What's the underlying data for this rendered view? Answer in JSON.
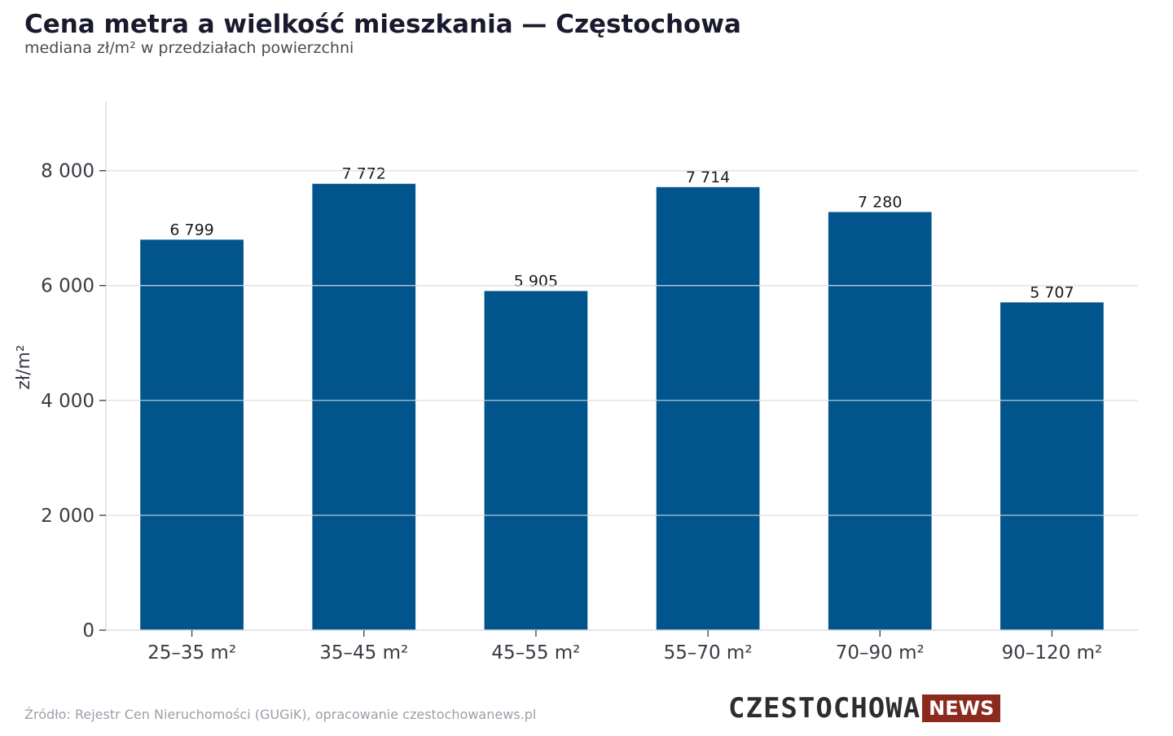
{
  "header": {
    "title": "Cena metra a wielkość mieszkania — Częstochowa",
    "subtitle": "mediana zł/m² w przedziałach powierzchni"
  },
  "footer": {
    "source": "Źródło: Rejestr Cen Nieruchomości (GUGiK), opracowanie czestochowanews.pl",
    "logo_main": "CZESTOCHOWA",
    "logo_tag": "NEWS"
  },
  "colors": {
    "bar": "#02558c",
    "grid": "#e3e3e3",
    "axis_text": "#3a3a44",
    "label_text": "#1a1a1a"
  },
  "chart_data": {
    "type": "bar",
    "title": "Cena metra a wielkość mieszkania — Częstochowa",
    "subtitle": "mediana zł/m² w przedziałach powierzchni",
    "xlabel": "",
    "ylabel": "zł/m²",
    "categories": [
      "25–35 m²",
      "35–45 m²",
      "45–55 m²",
      "55–70 m²",
      "70–90 m²",
      "90–120 m²"
    ],
    "values": [
      6799,
      7772,
      5905,
      7714,
      7280,
      5707
    ],
    "value_labels": [
      "6 799",
      "7 772",
      "5 905",
      "7 714",
      "7 280",
      "5 707"
    ],
    "yticks": [
      0,
      2000,
      4000,
      6000,
      8000
    ],
    "ytick_labels": [
      "0",
      "2 000",
      "4 000",
      "6 000",
      "8 000"
    ],
    "ylim": [
      0,
      9200
    ],
    "grid": true,
    "legend": "none"
  }
}
